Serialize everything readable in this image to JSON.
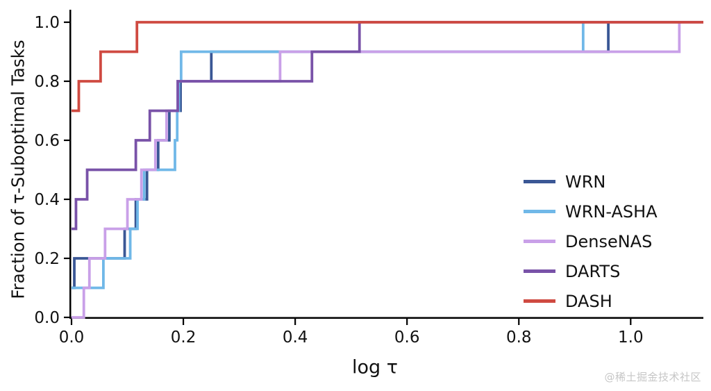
{
  "watermark": "@稀土掘金技术社区",
  "chart_data": {
    "type": "line",
    "subtype": "step-ecdf",
    "title": "",
    "xlabel": "log τ",
    "ylabel": "Fraction of τ-Suboptimal Tasks",
    "xlim": [
      0,
      1.13
    ],
    "ylim": [
      0,
      1.0
    ],
    "x_ticks": [
      0,
      0.2,
      0.4,
      0.6,
      0.8,
      1.0
    ],
    "x_tick_labels": [
      "0.0",
      "0.2",
      "0.4",
      "0.6",
      "0.8",
      "1.0"
    ],
    "y_ticks": [
      0,
      0.2,
      0.4,
      0.6,
      0.8,
      1.0
    ],
    "y_tick_labels": [
      "0.0",
      "0.2",
      "0.4",
      "0.6",
      "0.8",
      "1.0"
    ],
    "grid": false,
    "legend_position": "inside-right-lower",
    "x_end": 1.13,
    "axis_color": "#000000",
    "series": [
      {
        "name": "WRN",
        "color": "#3A5795",
        "steps": [
          [
            0,
            0.1
          ],
          [
            0.005,
            0.2
          ],
          [
            0.095,
            0.3
          ],
          [
            0.115,
            0.4
          ],
          [
            0.135,
            0.5
          ],
          [
            0.155,
            0.6
          ],
          [
            0.175,
            0.7
          ],
          [
            0.195,
            0.8
          ],
          [
            0.25,
            0.9
          ],
          [
            0.96,
            1.0
          ]
        ]
      },
      {
        "name": "WRN-ASHA",
        "color": "#70B8E8",
        "steps": [
          [
            0,
            0.1
          ],
          [
            0.057,
            0.2
          ],
          [
            0.105,
            0.3
          ],
          [
            0.118,
            0.4
          ],
          [
            0.13,
            0.5
          ],
          [
            0.185,
            0.6
          ],
          [
            0.189,
            0.7
          ],
          [
            0.192,
            0.8
          ],
          [
            0.196,
            0.9
          ],
          [
            0.915,
            1.0
          ]
        ]
      },
      {
        "name": "DenseNAS",
        "color": "#C9A0E8",
        "steps": [
          [
            0,
            0.0
          ],
          [
            0.022,
            0.1
          ],
          [
            0.032,
            0.2
          ],
          [
            0.06,
            0.3
          ],
          [
            0.1,
            0.4
          ],
          [
            0.125,
            0.5
          ],
          [
            0.15,
            0.6
          ],
          [
            0.17,
            0.7
          ],
          [
            0.19,
            0.8
          ],
          [
            0.373,
            0.9
          ],
          [
            1.087,
            1.0
          ]
        ]
      },
      {
        "name": "DARTS",
        "color": "#7952A8",
        "steps": [
          [
            0,
            0.3
          ],
          [
            0.008,
            0.4
          ],
          [
            0.028,
            0.5
          ],
          [
            0.115,
            0.6
          ],
          [
            0.14,
            0.7
          ],
          [
            0.19,
            0.8
          ],
          [
            0.43,
            0.9
          ],
          [
            0.515,
            1.0
          ]
        ]
      },
      {
        "name": "DASH",
        "color": "#CF4A41",
        "steps": [
          [
            0,
            0.7
          ],
          [
            0.013,
            0.8
          ],
          [
            0.052,
            0.9
          ],
          [
            0.117,
            1.0
          ]
        ]
      }
    ]
  }
}
